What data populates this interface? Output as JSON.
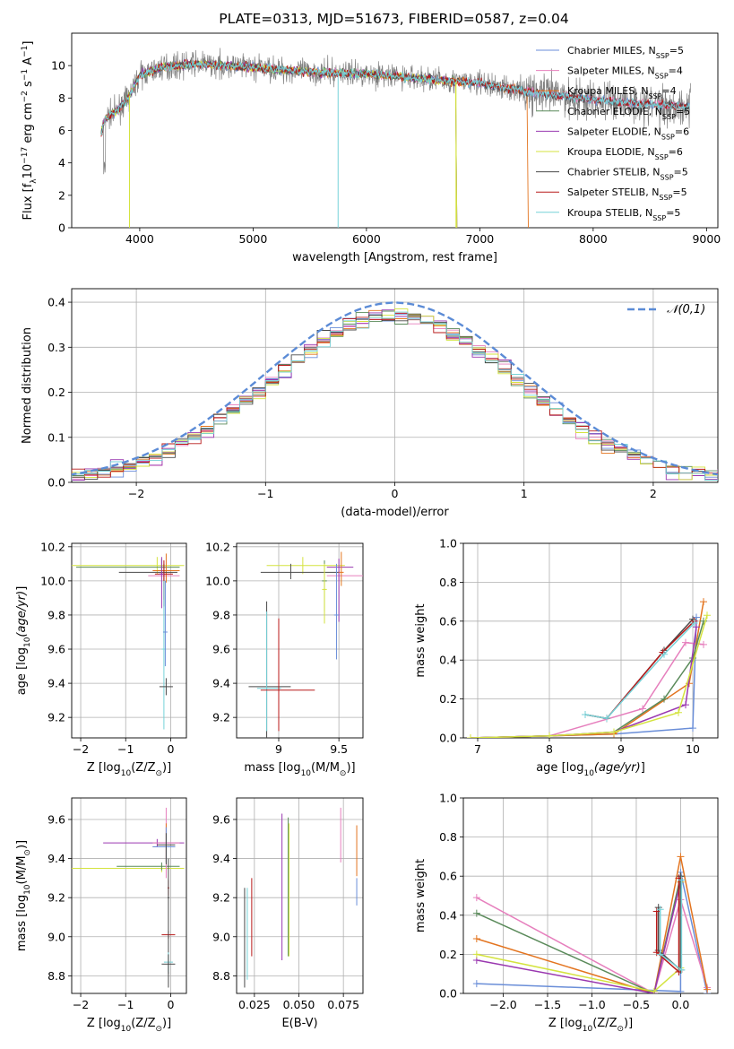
{
  "title": "PLATE=0313, MJD=51673, FIBERID=0587, z=0.04",
  "colors": {
    "chabrier_miles": "#6a8ed8",
    "salpeter_miles": "#e67fbd",
    "kroupa_miles": "#e3741f",
    "chabrier_elodie": "#5a8a5a",
    "salpeter_elodie": "#9a38b0",
    "kroupa_elodie": "#d4e33f",
    "chabrier_stelib": "#4a4a4a",
    "salpeter_stelib": "#b81a1a",
    "kroupa_stelib": "#76d2d8",
    "data": "#808080",
    "grid": "#b0b0b0"
  },
  "chart_data": [
    {
      "id": "spectrum",
      "type": "line",
      "xlabel": "wavelength [Angstrom, rest frame]",
      "ylabel": "Flux [f_λ10^-17 erg cm^-2 s^-1 A^-1]",
      "xlim": [
        3400,
        9100
      ],
      "ylim": [
        0,
        12
      ],
      "xticks": [
        4000,
        5000,
        6000,
        7000,
        8000,
        9000
      ],
      "yticks": [
        0,
        2,
        4,
        6,
        8,
        10
      ],
      "grid": false,
      "legend_placement": "top-right",
      "continuum": [
        [
          3650,
          5.6
        ],
        [
          3700,
          6.8
        ],
        [
          3800,
          7.2
        ],
        [
          3900,
          8.0
        ],
        [
          4000,
          9.4
        ],
        [
          4200,
          9.9
        ],
        [
          4500,
          10.1
        ],
        [
          5000,
          9.9
        ],
        [
          5500,
          9.6
        ],
        [
          6000,
          9.5
        ],
        [
          6500,
          9.2
        ],
        [
          7000,
          8.9
        ],
        [
          7500,
          8.3
        ],
        [
          8000,
          7.9
        ],
        [
          8500,
          7.6
        ],
        [
          8800,
          7.5
        ]
      ],
      "series": [
        {
          "name": "Chabrier MILES, N_SSP=5",
          "color_key": "chabrier_miles",
          "x_end": 8850
        },
        {
          "name": "Salpeter MILES, N_SSP=4",
          "color_key": "salpeter_miles",
          "x_end": 8850
        },
        {
          "name": "Kroupa MILES, N_SSP=4",
          "color_key": "kroupa_miles",
          "x_end": 7420
        },
        {
          "name": "Chabrier ELODIE, N_SSP=5",
          "color_key": "chabrier_elodie",
          "x_end": 6790
        },
        {
          "name": "Salpeter ELODIE, N_SSP=6",
          "color_key": "salpeter_elodie",
          "x_end": 6790
        },
        {
          "name": "Kroupa ELODIE, N_SSP=6",
          "color_key": "kroupa_elodie",
          "x_end": 6790
        },
        {
          "name": "Chabrier STELIB, N_SSP=5",
          "color_key": "chabrier_stelib",
          "x_end": 8850
        },
        {
          "name": "Salpeter STELIB, N_SSP=5",
          "color_key": "salpeter_stelib",
          "x_end": 8850
        },
        {
          "name": "Kroupa STELIB, N_SSP=5",
          "color_key": "kroupa_stelib",
          "x_end": 8850
        }
      ],
      "legend": [
        {
          "pre": "Chabrier MILES, N",
          "sub": "SSP",
          "post": "=5",
          "color_key": "chabrier_miles"
        },
        {
          "pre": "Salpeter MILES, N",
          "sub": "SSP",
          "post": "=4",
          "color_key": "salpeter_miles"
        },
        {
          "pre": "Kroupa MILES, N",
          "sub": "SSP",
          "post": "=4",
          "color_key": "kroupa_miles"
        },
        {
          "pre": "Chabrier ELODIE, N",
          "sub": "SSP",
          "post": "=5",
          "color_key": "chabrier_elodie"
        },
        {
          "pre": "Salpeter ELODIE, N",
          "sub": "SSP",
          "post": "=6",
          "color_key": "salpeter_elodie"
        },
        {
          "pre": "Kroupa ELODIE, N",
          "sub": "SSP",
          "post": "=6",
          "color_key": "kroupa_elodie"
        },
        {
          "pre": "Chabrier STELIB, N",
          "sub": "SSP",
          "post": "=5",
          "color_key": "chabrier_stelib"
        },
        {
          "pre": "Salpeter STELIB, N",
          "sub": "SSP",
          "post": "=5",
          "color_key": "salpeter_stelib"
        },
        {
          "pre": "Kroupa STELIB, N",
          "sub": "SSP",
          "post": "=5",
          "color_key": "kroupa_stelib"
        }
      ]
    },
    {
      "id": "residuals",
      "type": "line",
      "xlabel": "(data-model)/error",
      "ylabel": "Normed distribution",
      "xlim": [
        -2.5,
        2.5
      ],
      "ylim": [
        0,
        0.43
      ],
      "xticks": [
        -2,
        -1,
        0,
        1,
        2
      ],
      "yticks": [
        0.0,
        0.1,
        0.2,
        0.3,
        0.4
      ],
      "grid": true,
      "legend_placement": "top-right",
      "reference": {
        "name": "𝒩(0,1)",
        "mean": 0,
        "sigma": 1,
        "color": "#5b8bd6"
      }
    },
    {
      "id": "age_vs_Z",
      "type": "scatter",
      "xlabel": "Z [log10(Z/Z⊙)]",
      "ylabel": "age [log10(age/yr)]",
      "xlim": [
        -2.2,
        0.35
      ],
      "ylim": [
        9.08,
        10.22
      ],
      "xticks": [
        -2,
        -1,
        0
      ],
      "yticks": [
        9.2,
        9.4,
        9.6,
        9.8,
        10.0,
        10.2
      ],
      "grid": true
    },
    {
      "id": "age_vs_mass",
      "type": "scatter",
      "xlabel": "mass [log10(M/M⊙)]",
      "ylabel": "",
      "xlim": [
        8.65,
        9.7
      ],
      "ylim": [
        9.08,
        10.22
      ],
      "xticks": [
        9.0,
        9.5
      ],
      "yticks": [
        9.2,
        9.4,
        9.6,
        9.8,
        10.0,
        10.2
      ],
      "grid": true
    },
    {
      "id": "weight_vs_age",
      "type": "line",
      "xlabel": "age [log10(age/yr)]",
      "ylabel": "mass weight",
      "xlim": [
        6.8,
        10.35
      ],
      "ylim": [
        0,
        1.0
      ],
      "xticks": [
        7,
        8,
        9,
        10
      ],
      "yticks": [
        0.0,
        0.2,
        0.4,
        0.6,
        0.8,
        1.0
      ],
      "grid": true
    },
    {
      "id": "mass_vs_Z",
      "type": "scatter",
      "xlabel": "Z [log10(Z/Z⊙)]",
      "ylabel": "mass [log10(M/M⊙)]",
      "xlim": [
        -2.2,
        0.35
      ],
      "ylim": [
        8.71,
        9.71
      ],
      "xticks": [
        -2,
        -1,
        0
      ],
      "yticks": [
        8.8,
        9.0,
        9.2,
        9.4,
        9.6
      ],
      "grid": true
    },
    {
      "id": "mass_vs_ebv",
      "type": "scatter",
      "xlabel": "E(B-V)",
      "ylabel": "",
      "xlim": [
        0.015,
        0.086
      ],
      "ylim": [
        8.71,
        9.71
      ],
      "xticks": [
        0.025,
        0.05,
        0.075
      ],
      "xtick_labels": [
        "0.025",
        "0.050",
        "0.075"
      ],
      "yticks": [
        8.8,
        9.0,
        9.2,
        9.4,
        9.6
      ],
      "grid": true
    },
    {
      "id": "weight_vs_Z",
      "type": "line",
      "xlabel": "Z [log10(Z/Z⊙)]",
      "ylabel": "mass weight",
      "xlim": [
        -2.45,
        0.42
      ],
      "ylim": [
        0,
        1.0
      ],
      "xticks": [
        -2.0,
        -1.5,
        -1.0,
        -0.5,
        0.0
      ],
      "xtick_labels": [
        "−2.0",
        "−1.5",
        "−1.0",
        "−0.5",
        "0.0"
      ],
      "yticks": [
        0.0,
        0.2,
        0.4,
        0.6,
        0.8,
        1.0
      ],
      "grid": true
    }
  ]
}
